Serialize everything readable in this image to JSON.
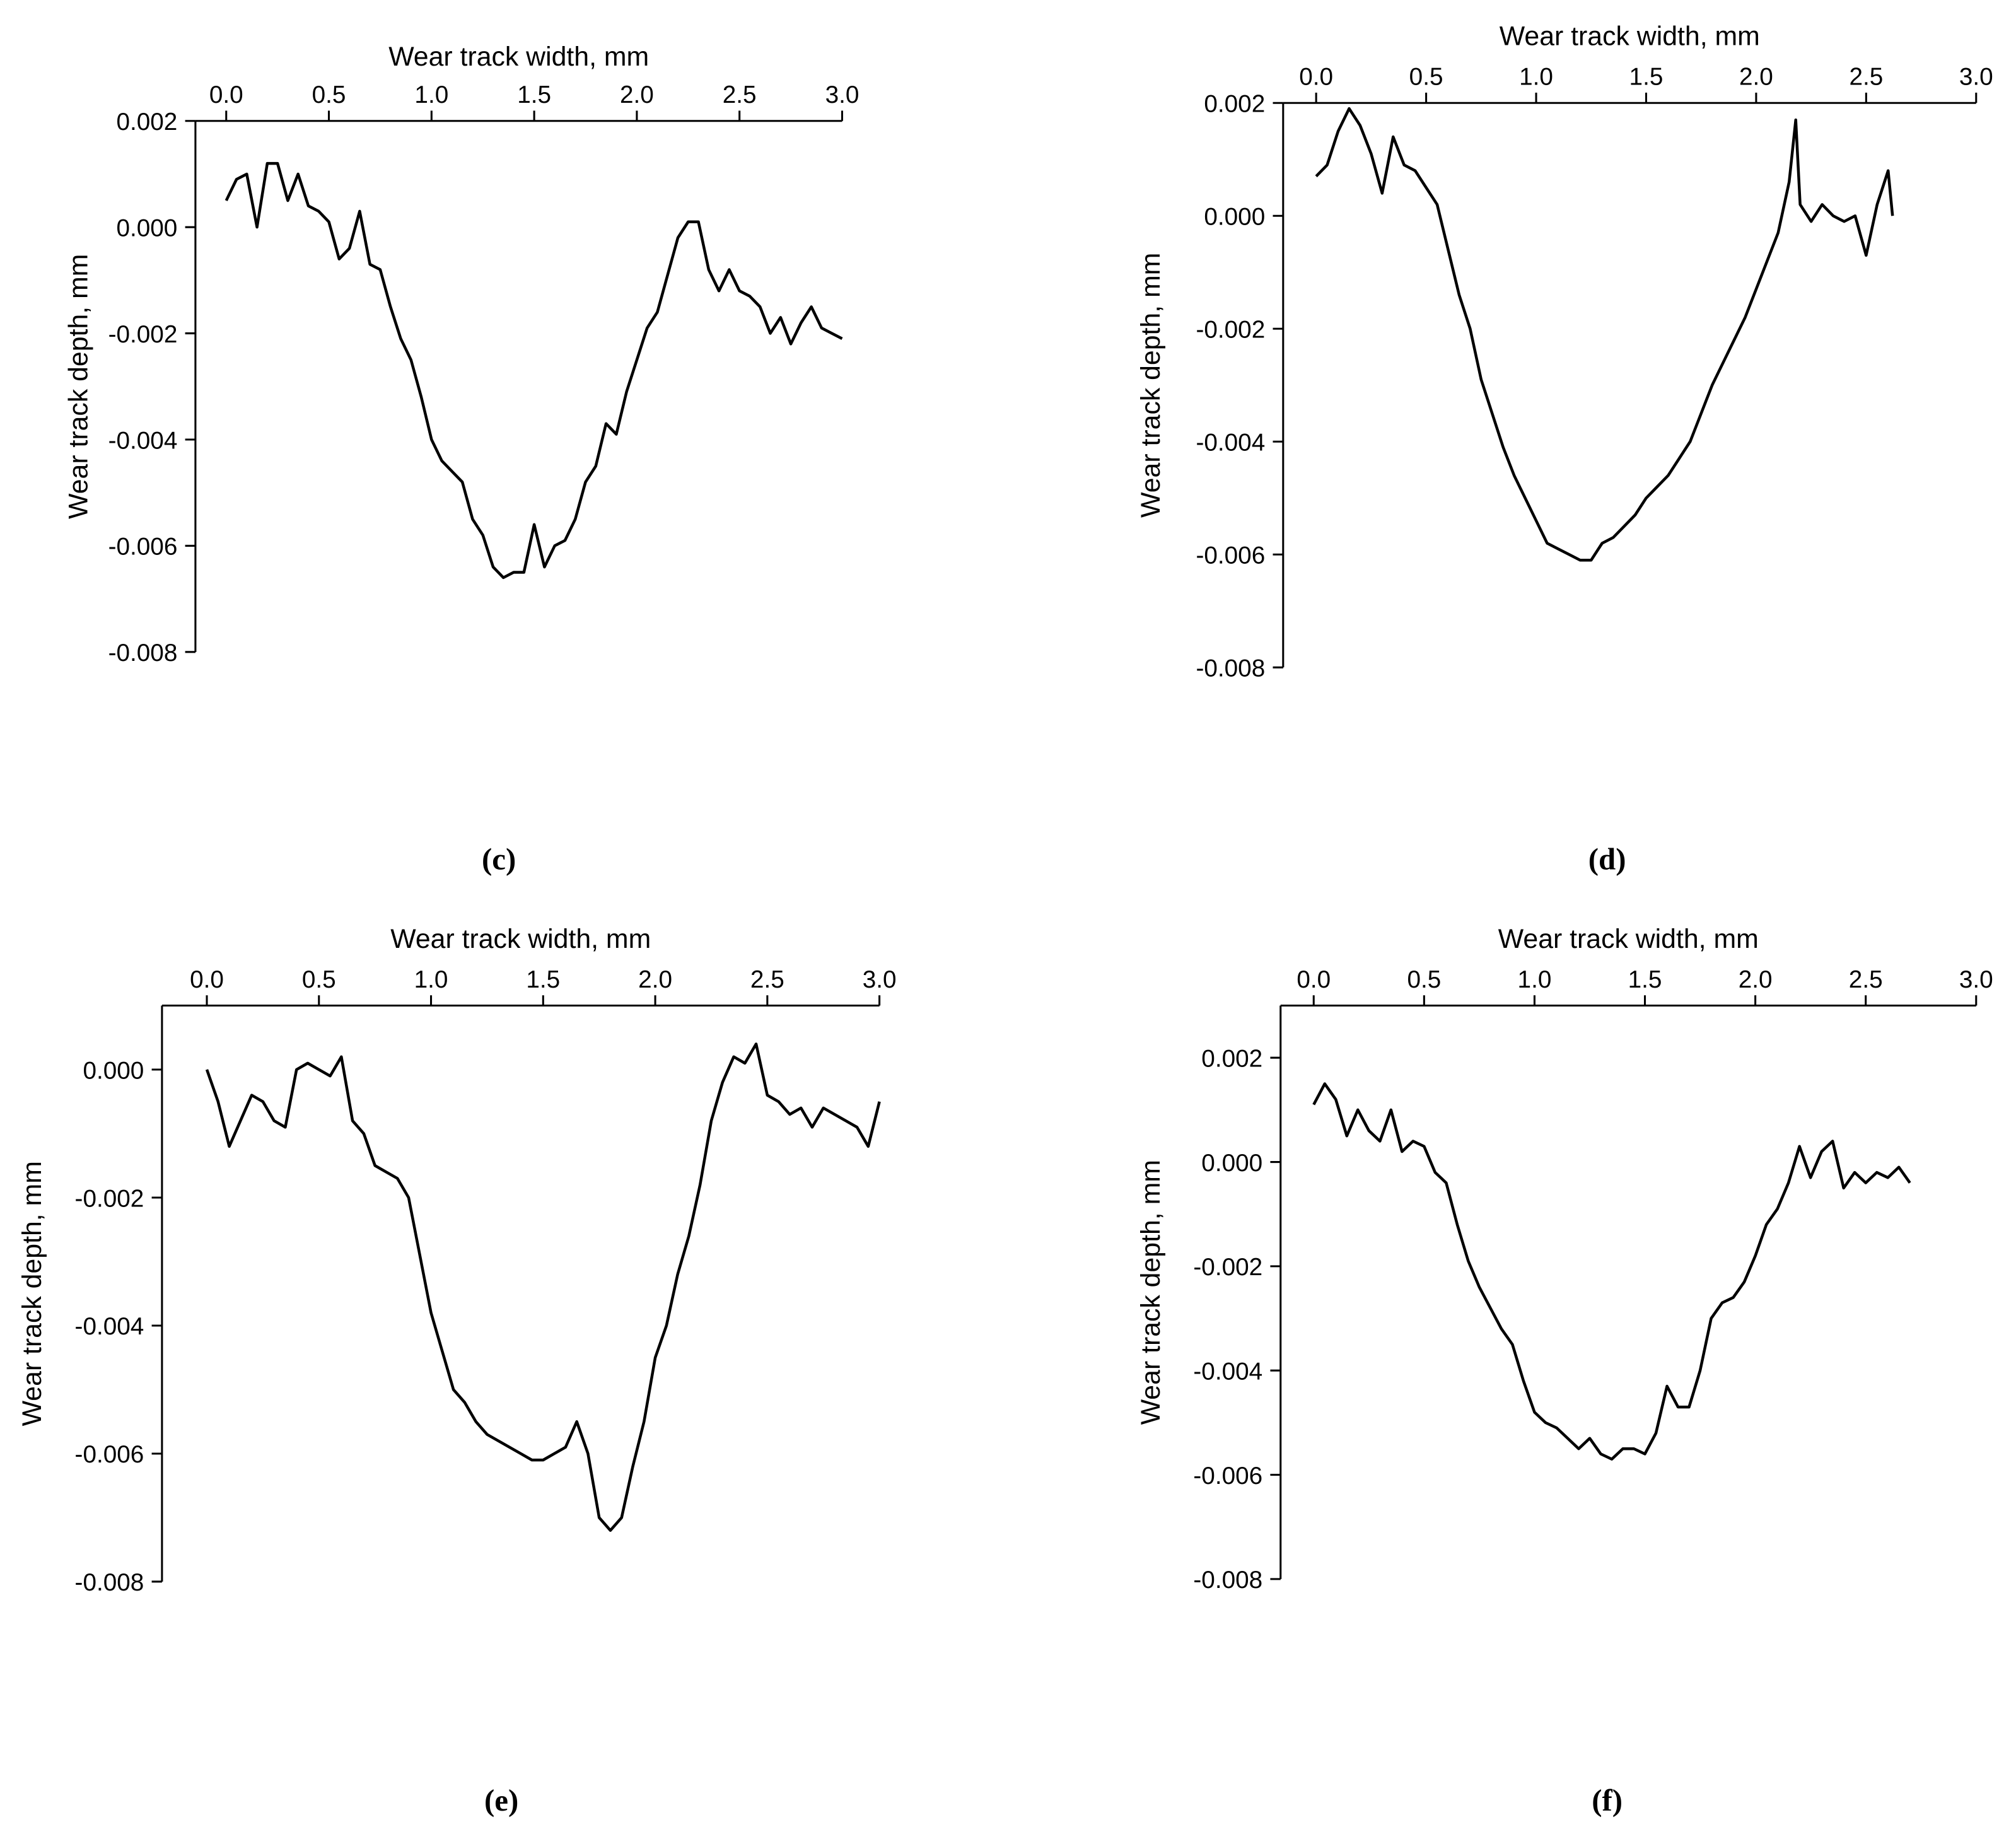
{
  "chart_data": [
    {
      "type": "line",
      "x_label": "Wear track width, mm",
      "y_label": "Wear track depth, mm",
      "panel_label": "(c)",
      "color": "#000000",
      "xlim": [
        -0.15,
        3.0
      ],
      "ylim": [
        -0.008,
        0.002
      ],
      "xticks": [
        {
          "value": 0,
          "label": "0.0"
        },
        0.5,
        {
          "value": 1,
          "label": "1.0"
        },
        1.5,
        {
          "value": 2,
          "label": "2.0"
        },
        2.5,
        {
          "value": 3,
          "label": "3.0"
        }
      ],
      "yticks": [
        0.002,
        {
          "value": 0,
          "label": "0.000"
        },
        -0.002,
        -0.004,
        -0.006,
        -0.008
      ],
      "x": [
        0,
        0.05,
        0.1,
        0.15,
        0.2,
        0.25,
        0.3,
        0.35,
        0.4,
        0.45,
        0.5,
        0.55,
        0.6,
        0.65,
        0.7,
        0.75,
        0.8,
        0.85,
        0.9,
        0.95,
        1,
        1.05,
        1.1,
        1.15,
        1.2,
        1.25,
        1.3,
        1.35,
        1.4,
        1.45,
        1.5,
        1.55,
        1.6,
        1.65,
        1.7,
        1.75,
        1.8,
        1.85,
        1.9,
        1.95,
        2,
        2.05,
        2.1,
        2.15,
        2.2,
        2.25,
        2.3,
        2.35,
        2.4,
        2.45,
        2.5,
        2.55,
        2.6,
        2.65,
        2.7,
        2.75,
        2.8,
        2.85,
        2.9,
        2.95,
        3
      ],
      "values": [
        0.0005,
        0.0009,
        0.001,
        0.0,
        0.0012,
        0.0012,
        0.0005,
        0.001,
        0.0004,
        0.0003,
        0.0001,
        -0.0006,
        -0.0004,
        0.0003,
        -0.0007,
        -0.0008,
        -0.0015,
        -0.0021,
        -0.0025,
        -0.0032,
        -0.004,
        -0.0044,
        -0.0046,
        -0.0048,
        -0.0055,
        -0.0058,
        -0.0064,
        -0.0066,
        -0.0065,
        -0.0065,
        -0.0056,
        -0.0064,
        -0.006,
        -0.0059,
        -0.0055,
        -0.0048,
        -0.0045,
        -0.0037,
        -0.0039,
        -0.0031,
        -0.0025,
        -0.0019,
        -0.0016,
        -0.0009,
        -0.0002,
        0.0001,
        0.0001,
        -0.0008,
        -0.0012,
        -0.0008,
        -0.0012,
        -0.0013,
        -0.0015,
        -0.002,
        -0.0017,
        -0.0022,
        -0.0018,
        -0.0015,
        -0.0019,
        -0.002,
        -0.0021
      ]
    },
    {
      "type": "line",
      "x_label": "Wear track width, mm",
      "y_label": "Wear track depth, mm",
      "panel_label": "(d)",
      "color": "#000000",
      "xlim": [
        -0.15,
        3.0
      ],
      "ylim": [
        -0.008,
        0.002
      ],
      "xticks": [
        {
          "value": 0,
          "label": "0.0"
        },
        0.5,
        {
          "value": 1,
          "label": "1.0"
        },
        1.5,
        {
          "value": 2,
          "label": "2.0"
        },
        2.5,
        {
          "value": 3,
          "label": "3.0"
        }
      ],
      "yticks": [
        0.002,
        {
          "value": 0,
          "label": "0.000"
        },
        -0.002,
        -0.004,
        -0.006,
        -0.008
      ],
      "x": [
        0,
        0.05,
        0.1,
        0.15,
        0.2,
        0.25,
        0.3,
        0.35,
        0.4,
        0.45,
        0.5,
        0.55,
        0.6,
        0.65,
        0.7,
        0.75,
        0.8,
        0.85,
        0.9,
        0.95,
        1,
        1.05,
        1.1,
        1.15,
        1.2,
        1.25,
        1.3,
        1.35,
        1.4,
        1.45,
        1.5,
        1.55,
        1.6,
        1.65,
        1.7,
        1.75,
        1.8,
        1.85,
        1.9,
        1.95,
        2,
        2.05,
        2.1,
        2.15,
        2.18,
        2.2,
        2.25,
        2.3,
        2.35,
        2.4,
        2.45,
        2.5,
        2.55,
        2.6,
        2.62
      ],
      "values": [
        0.0007,
        0.0009,
        0.0015,
        0.0019,
        0.0016,
        0.0011,
        0.0004,
        0.0014,
        0.0009,
        0.0008,
        0.0005,
        0.0002,
        -0.0006,
        -0.0014,
        -0.002,
        -0.0029,
        -0.0035,
        -0.0041,
        -0.0046,
        -0.005,
        -0.0054,
        -0.0058,
        -0.0059,
        -0.006,
        -0.0061,
        -0.0061,
        -0.0058,
        -0.0057,
        -0.0055,
        -0.0053,
        -0.005,
        -0.0048,
        -0.0046,
        -0.0043,
        -0.004,
        -0.0035,
        -0.003,
        -0.0026,
        -0.0022,
        -0.0018,
        -0.0013,
        -0.0008,
        -0.0003,
        0.0006,
        0.0017,
        0.0002,
        -0.0001,
        0.0002,
        0.0,
        -0.0001,
        0.0,
        -0.0007,
        0.0002,
        0.0008,
        0.0
      ]
    },
    {
      "type": "line",
      "x_label": "Wear track width, mm",
      "y_label": "Wear track depth, mm",
      "panel_label": "(e)",
      "color": "#000000",
      "xlim": [
        -0.2,
        3.0
      ],
      "ylim": [
        -0.008,
        0.001
      ],
      "xticks": [
        {
          "value": 0,
          "label": "0.0"
        },
        0.5,
        {
          "value": 1,
          "label": "1.0"
        },
        1.5,
        {
          "value": 2,
          "label": "2.0"
        },
        2.5,
        {
          "value": 3,
          "label": "3.0"
        }
      ],
      "yticks": [
        {
          "value": 0,
          "label": "0.000"
        },
        -0.002,
        -0.004,
        -0.006,
        -0.008
      ],
      "x": [
        0,
        0.05,
        0.1,
        0.15,
        0.2,
        0.25,
        0.3,
        0.35,
        0.4,
        0.45,
        0.5,
        0.55,
        0.6,
        0.65,
        0.7,
        0.75,
        0.8,
        0.85,
        0.9,
        0.95,
        1,
        1.05,
        1.1,
        1.15,
        1.2,
        1.25,
        1.3,
        1.35,
        1.4,
        1.45,
        1.5,
        1.55,
        1.6,
        1.65,
        1.7,
        1.75,
        1.8,
        1.85,
        1.9,
        1.95,
        2,
        2.05,
        2.1,
        2.15,
        2.2,
        2.25,
        2.3,
        2.35,
        2.4,
        2.45,
        2.5,
        2.55,
        2.6,
        2.65,
        2.7,
        2.75,
        2.8,
        2.85,
        2.9,
        2.95,
        3
      ],
      "values": [
        0.0,
        -0.0005,
        -0.0012,
        -0.0008,
        -0.0004,
        -0.0005,
        -0.0008,
        -0.0009,
        0.0,
        0.0001,
        0.0,
        -0.0001,
        0.0002,
        -0.0008,
        -0.001,
        -0.0015,
        -0.0016,
        -0.0017,
        -0.002,
        -0.0029,
        -0.0038,
        -0.0044,
        -0.005,
        -0.0052,
        -0.0055,
        -0.0057,
        -0.0058,
        -0.0059,
        -0.006,
        -0.0061,
        -0.0061,
        -0.006,
        -0.0059,
        -0.0055,
        -0.006,
        -0.007,
        -0.0072,
        -0.007,
        -0.0062,
        -0.0055,
        -0.0045,
        -0.004,
        -0.0032,
        -0.0026,
        -0.0018,
        -0.0008,
        -0.0002,
        0.0002,
        0.0001,
        0.0004,
        -0.0004,
        -0.0005,
        -0.0007,
        -0.0006,
        -0.0009,
        -0.0006,
        -0.0007,
        -0.0008,
        -0.0009,
        -0.0012,
        -0.0005
      ]
    },
    {
      "type": "line",
      "x_label": "Wear track width, mm",
      "y_label": "Wear track depth, mm",
      "panel_label": "(f)",
      "color": "#000000",
      "xlim": [
        -0.15,
        3.0
      ],
      "ylim": [
        -0.008,
        0.003
      ],
      "xticks": [
        {
          "value": 0,
          "label": "0.0"
        },
        0.5,
        {
          "value": 1,
          "label": "1.0"
        },
        1.5,
        {
          "value": 2,
          "label": "2.0"
        },
        2.5,
        {
          "value": 3,
          "label": "3.0"
        }
      ],
      "yticks": [
        0.002,
        {
          "value": 0,
          "label": "0.000"
        },
        -0.002,
        -0.004,
        -0.006,
        -0.008
      ],
      "x": [
        0,
        0.05,
        0.1,
        0.15,
        0.2,
        0.25,
        0.3,
        0.35,
        0.4,
        0.45,
        0.5,
        0.55,
        0.6,
        0.65,
        0.7,
        0.75,
        0.8,
        0.85,
        0.9,
        0.95,
        1,
        1.05,
        1.1,
        1.15,
        1.2,
        1.25,
        1.3,
        1.35,
        1.4,
        1.45,
        1.5,
        1.55,
        1.6,
        1.65,
        1.7,
        1.75,
        1.8,
        1.85,
        1.9,
        1.95,
        2,
        2.05,
        2.1,
        2.15,
        2.2,
        2.25,
        2.3,
        2.35,
        2.4,
        2.45,
        2.5,
        2.55,
        2.6,
        2.65,
        2.7
      ],
      "values": [
        0.0011,
        0.0015,
        0.0012,
        0.0005,
        0.001,
        0.0006,
        0.0004,
        0.001,
        0.0002,
        0.0004,
        0.0003,
        -0.0002,
        -0.0004,
        -0.0012,
        -0.0019,
        -0.0024,
        -0.0028,
        -0.0032,
        -0.0035,
        -0.0042,
        -0.0048,
        -0.005,
        -0.0051,
        -0.0053,
        -0.0055,
        -0.0053,
        -0.0056,
        -0.0057,
        -0.0055,
        -0.0055,
        -0.0056,
        -0.0052,
        -0.0043,
        -0.0047,
        -0.0047,
        -0.004,
        -0.003,
        -0.0027,
        -0.0026,
        -0.0023,
        -0.0018,
        -0.0012,
        -0.0009,
        -0.0004,
        0.0003,
        -0.0003,
        0.0002,
        0.0004,
        -0.0005,
        -0.0002,
        -0.0004,
        -0.0002,
        -0.0003,
        -0.0001,
        -0.0004
      ]
    }
  ]
}
